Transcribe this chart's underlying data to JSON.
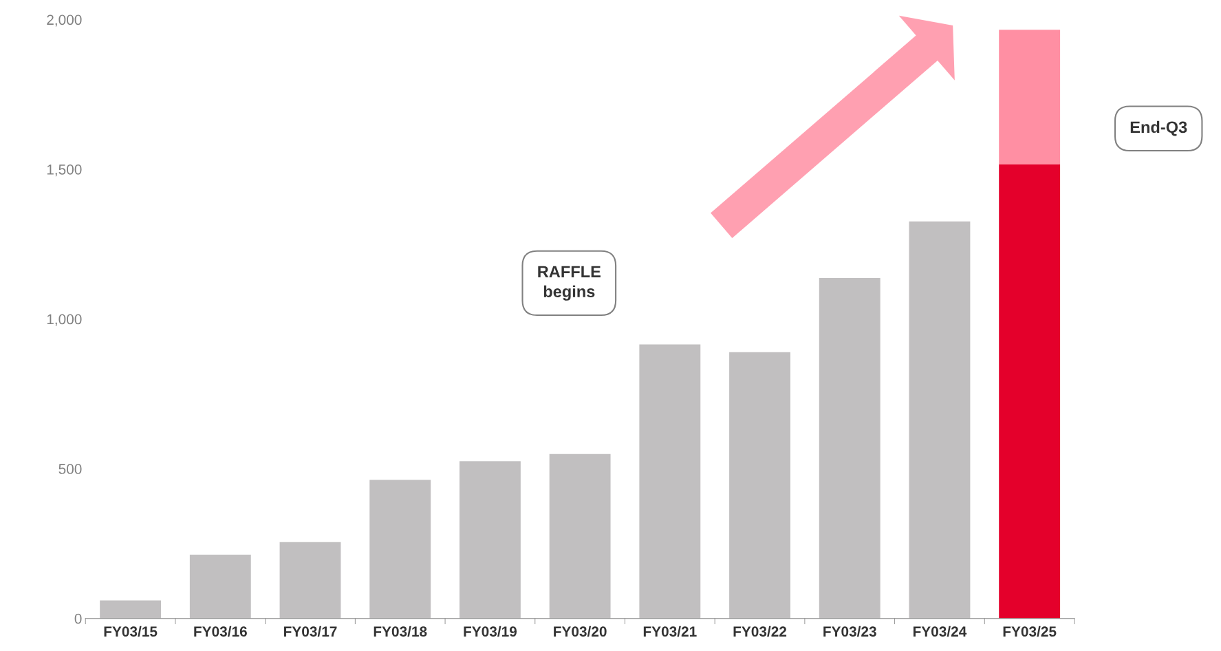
{
  "chart_data": {
    "type": "bar",
    "stacked": true,
    "categories": [
      "FY03/15",
      "FY03/16",
      "FY03/17",
      "FY03/18",
      "FY03/19",
      "FY03/20",
      "FY03/21",
      "FY03/22",
      "FY03/23",
      "FY03/24",
      "FY03/25"
    ],
    "series": [
      {
        "colors": [
          "#c1bfc0",
          "#c1bfc0",
          "#c1bfc0",
          "#c1bfc0",
          "#c1bfc0",
          "#c1bfc0",
          "#c1bfc0",
          "#c1bfc0",
          "#c1bfc0",
          "#c1bfc0",
          "#e4002b"
        ],
        "values": [
          60,
          213,
          255,
          463,
          525,
          549,
          915,
          889,
          1137,
          1326,
          1516
        ]
      },
      {
        "color": "#ff8fa3",
        "values": [
          null,
          null,
          null,
          null,
          null,
          null,
          null,
          null,
          null,
          null,
          450
        ]
      }
    ],
    "ylim": [
      0,
      2000
    ],
    "yticks": [
      0,
      {
        "value": 500,
        "label": "500"
      },
      {
        "value": 1000,
        "label": "1,000"
      },
      {
        "value": 1500,
        "label": "1,500"
      },
      {
        "value": 2000,
        "label": "2,000"
      }
    ],
    "grid": false,
    "legend": false,
    "annotations": [
      "RAFFLE\nbegins",
      "End-Q3"
    ]
  }
}
